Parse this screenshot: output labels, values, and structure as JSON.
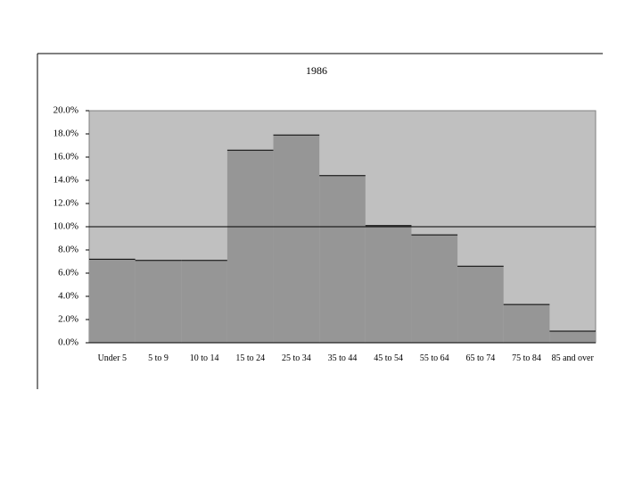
{
  "chart_data": {
    "type": "bar",
    "title": "1986",
    "categories": [
      "Under 5",
      "5 to 9",
      "10 to 14",
      "15 to 24",
      "25 to 34",
      "35 to 44",
      "45 to 54",
      "55 to 64",
      "65 to 74",
      "75 to 84",
      "85 and over"
    ],
    "values": [
      7.2,
      7.1,
      7.1,
      16.6,
      17.9,
      14.4,
      10.1,
      9.3,
      6.6,
      3.3,
      1.0
    ],
    "color": "#969696",
    "background": "#c0c0c0",
    "reference_line": 10,
    "ylim": [
      0,
      20
    ],
    "yticks": [
      {
        "value": 0,
        "label": "0.0%"
      },
      {
        "value": 2,
        "label": "2.0%"
      },
      {
        "value": 4,
        "label": "4.0%"
      },
      {
        "value": 6,
        "label": "6.0%"
      },
      {
        "value": 8,
        "label": "8.0%"
      },
      {
        "value": 10,
        "label": "10.0%"
      },
      {
        "value": 12,
        "label": "12.0%"
      },
      {
        "value": 14,
        "label": "14.0%"
      },
      {
        "value": 16,
        "label": "16.0%"
      },
      {
        "value": 18,
        "label": "18.0%"
      },
      {
        "value": 20,
        "label": "20.0%"
      }
    ],
    "grid": false
  }
}
